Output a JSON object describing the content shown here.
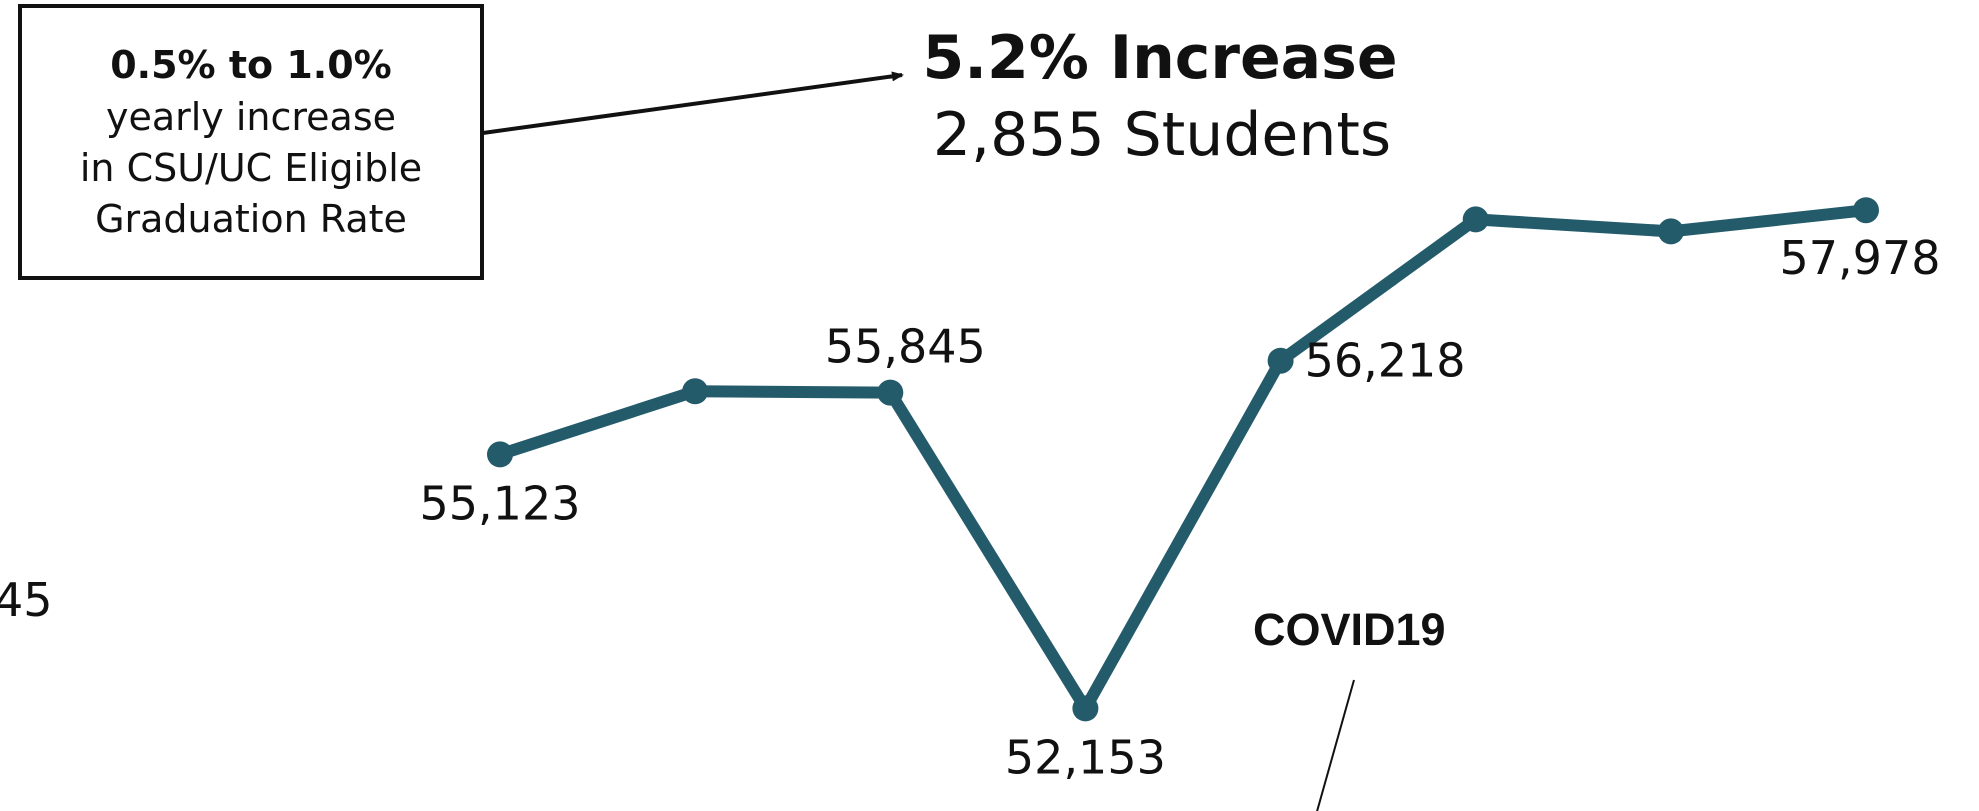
{
  "callout_box": {
    "line1": "0.5% to 1.0%",
    "line2": "yearly increase",
    "line3": "in CSU/UC Eligible",
    "line4": "Graduation Rate"
  },
  "headline": {
    "title": "5.2% Increase",
    "subtitle": "2,855 Students"
  },
  "covid_annotation": "COVID19",
  "edge_fragment": "45",
  "colors": {
    "line": "#245b6b",
    "text": "#111111"
  },
  "chart_data": {
    "type": "line",
    "title": "",
    "xlabel": "",
    "ylabel": "",
    "x": [
      1,
      2,
      3,
      4,
      5,
      6,
      7,
      8
    ],
    "series": [
      {
        "values": [
          55123,
          55860,
          55845,
          52153,
          56218,
          57870,
          57730,
          57978
        ],
        "labels": [
          "55,123",
          "",
          "55,845",
          "52,153",
          "56,218",
          "",
          "",
          "57,978"
        ]
      }
    ],
    "ylim": [
      51000,
      59500
    ],
    "grid": false,
    "legend": "none"
  }
}
